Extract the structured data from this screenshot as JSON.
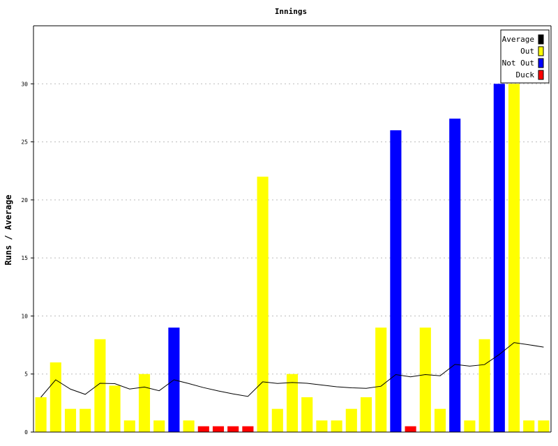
{
  "chart_data": {
    "type": "bar",
    "title": "Innings",
    "xlabel": "",
    "ylabel": "Runs / Average",
    "ylim": [
      0,
      35
    ],
    "yticks": [
      0,
      5,
      10,
      15,
      20,
      25,
      30
    ],
    "grid": true,
    "legend_position": "top-right",
    "legend": [
      {
        "label": "Average",
        "color": "#000000"
      },
      {
        "label": "Out",
        "color": "#ffff00"
      },
      {
        "label": "Not Out",
        "color": "#0000ff"
      },
      {
        "label": "Duck",
        "color": "#ff0000"
      }
    ],
    "innings": [
      {
        "runs": 3,
        "status": "Out"
      },
      {
        "runs": 6,
        "status": "Out"
      },
      {
        "runs": 2,
        "status": "Out"
      },
      {
        "runs": 2,
        "status": "Out"
      },
      {
        "runs": 8,
        "status": "Out"
      },
      {
        "runs": 4,
        "status": "Out"
      },
      {
        "runs": 1,
        "status": "Out"
      },
      {
        "runs": 5,
        "status": "Out"
      },
      {
        "runs": 1,
        "status": "Out"
      },
      {
        "runs": 9,
        "status": "Not Out"
      },
      {
        "runs": 1,
        "status": "Out"
      },
      {
        "runs": 0,
        "status": "Duck"
      },
      {
        "runs": 0,
        "status": "Duck"
      },
      {
        "runs": 0,
        "status": "Duck"
      },
      {
        "runs": 0,
        "status": "Duck"
      },
      {
        "runs": 22,
        "status": "Out"
      },
      {
        "runs": 2,
        "status": "Out"
      },
      {
        "runs": 5,
        "status": "Out"
      },
      {
        "runs": 3,
        "status": "Out"
      },
      {
        "runs": 1,
        "status": "Out"
      },
      {
        "runs": 1,
        "status": "Out"
      },
      {
        "runs": 2,
        "status": "Out"
      },
      {
        "runs": 3,
        "status": "Out"
      },
      {
        "runs": 9,
        "status": "Out"
      },
      {
        "runs": 26,
        "status": "Not Out"
      },
      {
        "runs": 0,
        "status": "Duck"
      },
      {
        "runs": 9,
        "status": "Out"
      },
      {
        "runs": 2,
        "status": "Out"
      },
      {
        "runs": 27,
        "status": "Not Out"
      },
      {
        "runs": 1,
        "status": "Out"
      },
      {
        "runs": 8,
        "status": "Out"
      },
      {
        "runs": 30,
        "status": "Not Out"
      },
      {
        "runs": 30,
        "status": "Out"
      },
      {
        "runs": 1,
        "status": "Out"
      },
      {
        "runs": 1,
        "status": "Out"
      }
    ],
    "average": [
      3.0,
      4.5,
      3.7,
      3.25,
      4.2,
      4.17,
      3.71,
      3.88,
      3.56,
      4.5,
      4.18,
      3.83,
      3.54,
      3.29,
      3.07,
      4.33,
      4.19,
      4.27,
      4.2,
      4.05,
      3.9,
      3.81,
      3.77,
      3.95,
      4.95,
      4.76,
      4.95,
      4.85,
      5.83,
      5.68,
      5.81,
      6.68,
      7.71,
      7.52,
      7.32
    ]
  }
}
